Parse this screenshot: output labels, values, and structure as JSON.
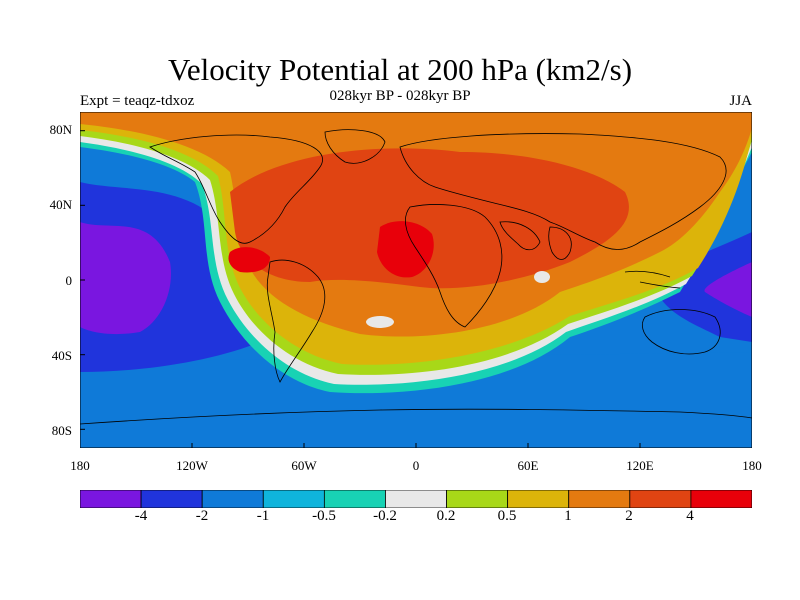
{
  "title": "Velocity Potential at 200 hPa (km2/s)",
  "subtitle": "028kyr BP - 028kyr BP",
  "experiment": "Expt = teaqz-tdxoz",
  "season": "JJA",
  "map": {
    "projection": "cylindrical equidistant",
    "lat_labels": [
      "80N",
      "40N",
      "0",
      "40S",
      "80S"
    ],
    "lon_labels": [
      "180",
      "120W",
      "60W",
      "0",
      "60E",
      "120E",
      "180"
    ],
    "features": [
      "coastlines",
      "filled contours"
    ]
  },
  "colorbar": {
    "colors": [
      "#7a16e0",
      "#2034dc",
      "#0f7ad8",
      "#0fb4dc",
      "#18d2b4",
      "#e8e8e8",
      "#a8d818",
      "#dcb40a",
      "#e47a10",
      "#e04412",
      "#e8000a"
    ],
    "labels": [
      "-4",
      "-2",
      "-1",
      "-0.5",
      "-0.2",
      "0.2",
      "0.5",
      "1",
      "2",
      "4"
    ]
  }
}
